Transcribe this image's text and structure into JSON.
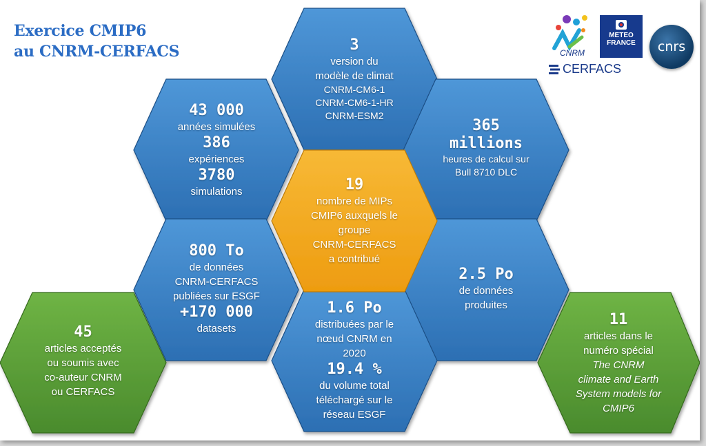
{
  "title": {
    "line1": "Exercice CMIP6",
    "line2": "au CNRM-CERFACS"
  },
  "colors": {
    "blue": "#3a82c8",
    "orange": "#f2a91e",
    "green": "#5fa13b",
    "title": "#2b6cc4"
  },
  "logos": {
    "cnrm": "CNRM",
    "meteo_line1": "METEO",
    "meteo_line2": "FRANCE",
    "cnrs": "cnrs",
    "cerfacs": "CERFACS"
  },
  "hexes": {
    "versions": {
      "big": "3",
      "l1": "version du",
      "l2": "modèle de climat",
      "m1": "CNRM-CM6-1",
      "m2": "CNRM-CM6-1-HR",
      "m3": "CNRM-ESM2"
    },
    "simulated": {
      "b1": "43 000",
      "t1": "années simulées",
      "b2": "386",
      "t2": "expériences",
      "b3": "3780",
      "t3": "simulations"
    },
    "hours": {
      "b1": "365",
      "b2": "millions",
      "t1": "heures de calcul sur",
      "t2": "Bull 8710 DLC"
    },
    "mips": {
      "big": "19",
      "l1": "nombre de MIPs",
      "l2": "CMIP6 auxquels le",
      "l3": "groupe",
      "l4": "CNRM-CERFACS",
      "l5": "a contribué"
    },
    "published": {
      "b1": "800 To",
      "t1": "de données",
      "t2": "CNRM-CERFACS",
      "t3": "publiées sur ESGF",
      "b2": "+170 000",
      "t4": "datasets"
    },
    "produced": {
      "big": "2.5 Po",
      "l1": "de données",
      "l2": "produites"
    },
    "distributed": {
      "b1": "1.6 Po",
      "t1": "distribuées par le",
      "t2": "nœud CNRM en",
      "t3": "2020",
      "b2": "19.4 %",
      "t4": "du volume total",
      "t5": "téléchargé sur le",
      "t6": "réseau ESGF"
    },
    "articles": {
      "big": "45",
      "l1": "articles acceptés",
      "l2": "ou soumis avec",
      "l3": "co-auteur CNRM",
      "l4": "ou CERFACS"
    },
    "special": {
      "big": "11",
      "l1": "articles dans le",
      "l2": "numéro spécial",
      "i1": "The CNRM",
      "i2": "climate and Earth",
      "i3": "System models for",
      "i4": "CMIP6"
    }
  }
}
